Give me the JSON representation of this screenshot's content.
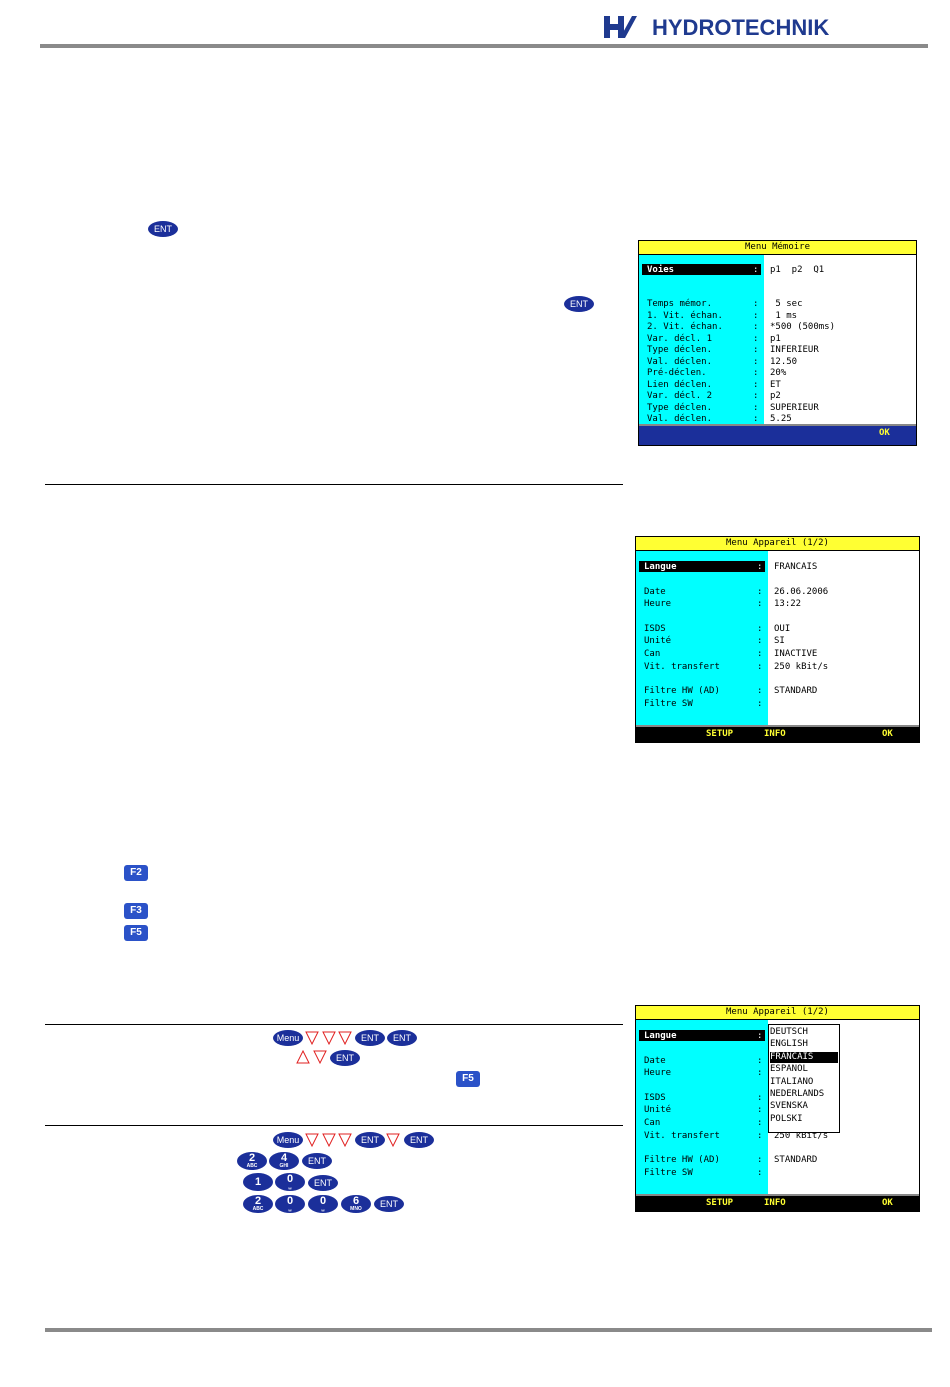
{
  "header": {
    "logo": "HYDROTECHNIK"
  },
  "keys": {
    "ent": "ENT",
    "menu": "Menu",
    "f2": "F2",
    "f3": "F3",
    "f5": "F5"
  },
  "keypad": [
    {
      "digit": "2",
      "letters": "ABC"
    },
    {
      "digit": "4",
      "letters": "GHI"
    },
    {
      "digit": "1"
    },
    {
      "digit": "0",
      "letters": "␣"
    },
    {
      "digit": "6",
      "letters": "MNO"
    }
  ],
  "screens": [
    {
      "title": "Menu Mémoire",
      "separator": ":",
      "rows": [
        {
          "label": "Voies",
          "value": "p1  p2  Q1"
        },
        {
          "label": "Temps mémor.",
          "value": " 5 sec"
        },
        {
          "label": "1. Vit. échan.",
          "value": " 1 ms"
        },
        {
          "label": "2. Vit. échan.",
          "value": "*500 (500ms)"
        },
        {
          "label": "Var. décl. 1",
          "value": "p1"
        },
        {
          "label": "Type déclen.",
          "value": "INFERIEUR"
        },
        {
          "label": "Val. déclen.",
          "value": "12.50"
        },
        {
          "label": "Pré-déclen.",
          "value": "20%"
        },
        {
          "label": "Lien déclen.",
          "value": "ET"
        },
        {
          "label": "Var. décl. 2",
          "value": "p2"
        },
        {
          "label": "Type déclen.",
          "value": "SUPERIEUR"
        },
        {
          "label": "Val. déclen.",
          "value": "5.25"
        }
      ],
      "footer": [
        "OK"
      ]
    },
    {
      "title": "Menu Appareil (1/2)",
      "separator": ":",
      "rows": [
        {
          "label": "Langue",
          "value": "FRANCAIS"
        },
        {
          "label": "Date",
          "value": "26.06.2006"
        },
        {
          "label": "Heure",
          "value": "13:22"
        },
        {
          "label": "ISDS",
          "value": "OUI"
        },
        {
          "label": "Unité",
          "value": "SI"
        },
        {
          "label": "Can",
          "value": "INACTIVE"
        },
        {
          "label": "Vit. transfert",
          "value": "250 kBit/s"
        },
        {
          "label": "Filtre HW (AD)",
          "value": "STANDARD"
        },
        {
          "label": "Filtre SW"
        }
      ],
      "footer": [
        "SETUP",
        "INFO",
        "OK"
      ]
    },
    {
      "title": "Menu Appareil (1/2)",
      "separator": ":",
      "rows": [
        {
          "label": "Langue"
        },
        {
          "label": "Date"
        },
        {
          "label": "Heure"
        },
        {
          "label": "ISDS"
        },
        {
          "label": "Unité"
        },
        {
          "label": "Can"
        },
        {
          "label": "Vit. transfert",
          "value": "250 kBit/s"
        },
        {
          "label": "Filtre HW (AD)",
          "value": "STANDARD"
        },
        {
          "label": "Filtre SW"
        }
      ],
      "dropdown": [
        "DEUTSCH",
        "ENGLISH",
        "FRANCAIS",
        "ESPANOL",
        "ITALIANO",
        "NEDERLANDS",
        "SVENSKA",
        "POLSKI"
      ],
      "footer": [
        "SETUP",
        "INFO",
        "OK"
      ]
    }
  ]
}
